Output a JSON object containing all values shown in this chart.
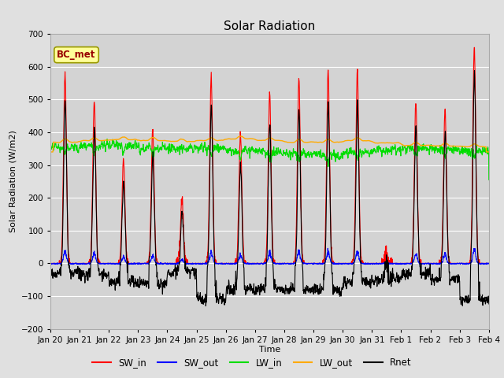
{
  "title": "Solar Radiation",
  "ylabel": "Solar Radiation (W/m2)",
  "xlabel": "Time",
  "annotation": "BC_met",
  "ylim": [
    -200,
    700
  ],
  "yticks": [
    -200,
    -100,
    0,
    100,
    200,
    300,
    400,
    500,
    600,
    700
  ],
  "n_days": 15,
  "line_colors": {
    "SW_in": "#ff0000",
    "SW_out": "#0000ff",
    "LW_in": "#00dd00",
    "LW_out": "#ffaa00",
    "Rnet": "#000000"
  },
  "bg_color": "#e0e0e0",
  "plot_bg_color": "#d3d3d3",
  "xtick_labels": [
    "Jan 20",
    "Jan 21",
    "Jan 22",
    "Jan 23",
    "Jan 24",
    "Jan 25",
    "Jan 26",
    "Jan 27",
    "Jan 28",
    "Jan 29",
    "Jan 30",
    "Jan 31",
    "Feb 1",
    "Feb 2",
    "Feb 3",
    "Feb 4"
  ],
  "annotation_box_color": "#ffff99",
  "annotation_text_color": "#990000",
  "sw_in_peaks": [
    580,
    495,
    320,
    410,
    195,
    570,
    395,
    520,
    565,
    590,
    590,
    30,
    490,
    470,
    660
  ],
  "lw_out_base": [
    370,
    375,
    378,
    375,
    372,
    375,
    380,
    375,
    370,
    370,
    375,
    368,
    360,
    358,
    356
  ],
  "lw_in_base": [
    355,
    358,
    360,
    355,
    350,
    352,
    345,
    340,
    335,
    330,
    340,
    345,
    350,
    348,
    342
  ],
  "night_rnet": [
    -30,
    -35,
    -55,
    -60,
    -30,
    -110,
    -80,
    -80,
    -80,
    -80,
    -60,
    -50,
    -30,
    -50,
    -110
  ]
}
